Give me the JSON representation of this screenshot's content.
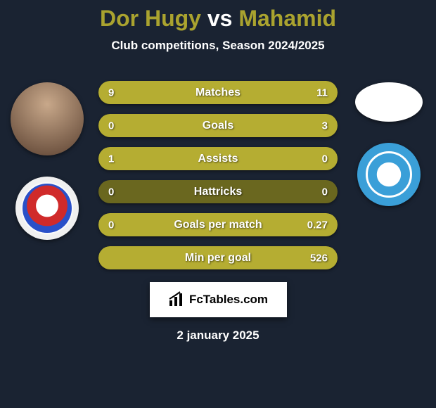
{
  "title": {
    "player1": "Dor Hugy",
    "vs": "vs",
    "player2": "Mahamid"
  },
  "subtitle": "Club competitions, Season 2024/2025",
  "colors": {
    "background": "#1a2332",
    "bar_bg": "#6a671f",
    "bar_fill": "#b5ad32",
    "title_accent": "#aaa32f",
    "text": "#ffffff",
    "brand_bg": "#ffffff",
    "brand_text": "#000000"
  },
  "stats": [
    {
      "label": "Matches",
      "left_value": "9",
      "right_value": "11",
      "left_pct": 45,
      "right_pct": 55
    },
    {
      "label": "Goals",
      "left_value": "0",
      "right_value": "3",
      "left_pct": 0,
      "right_pct": 100
    },
    {
      "label": "Assists",
      "left_value": "1",
      "right_value": "0",
      "left_pct": 100,
      "right_pct": 0
    },
    {
      "label": "Hattricks",
      "left_value": "0",
      "right_value": "0",
      "left_pct": 0,
      "right_pct": 0
    },
    {
      "label": "Goals per match",
      "left_value": "0",
      "right_value": "0.27",
      "left_pct": 0,
      "right_pct": 100
    },
    {
      "label": "Min per goal",
      "left_value": "",
      "right_value": "526",
      "left_pct": 0,
      "right_pct": 100
    }
  ],
  "brand": "FcTables.com",
  "date": "2 january 2025"
}
